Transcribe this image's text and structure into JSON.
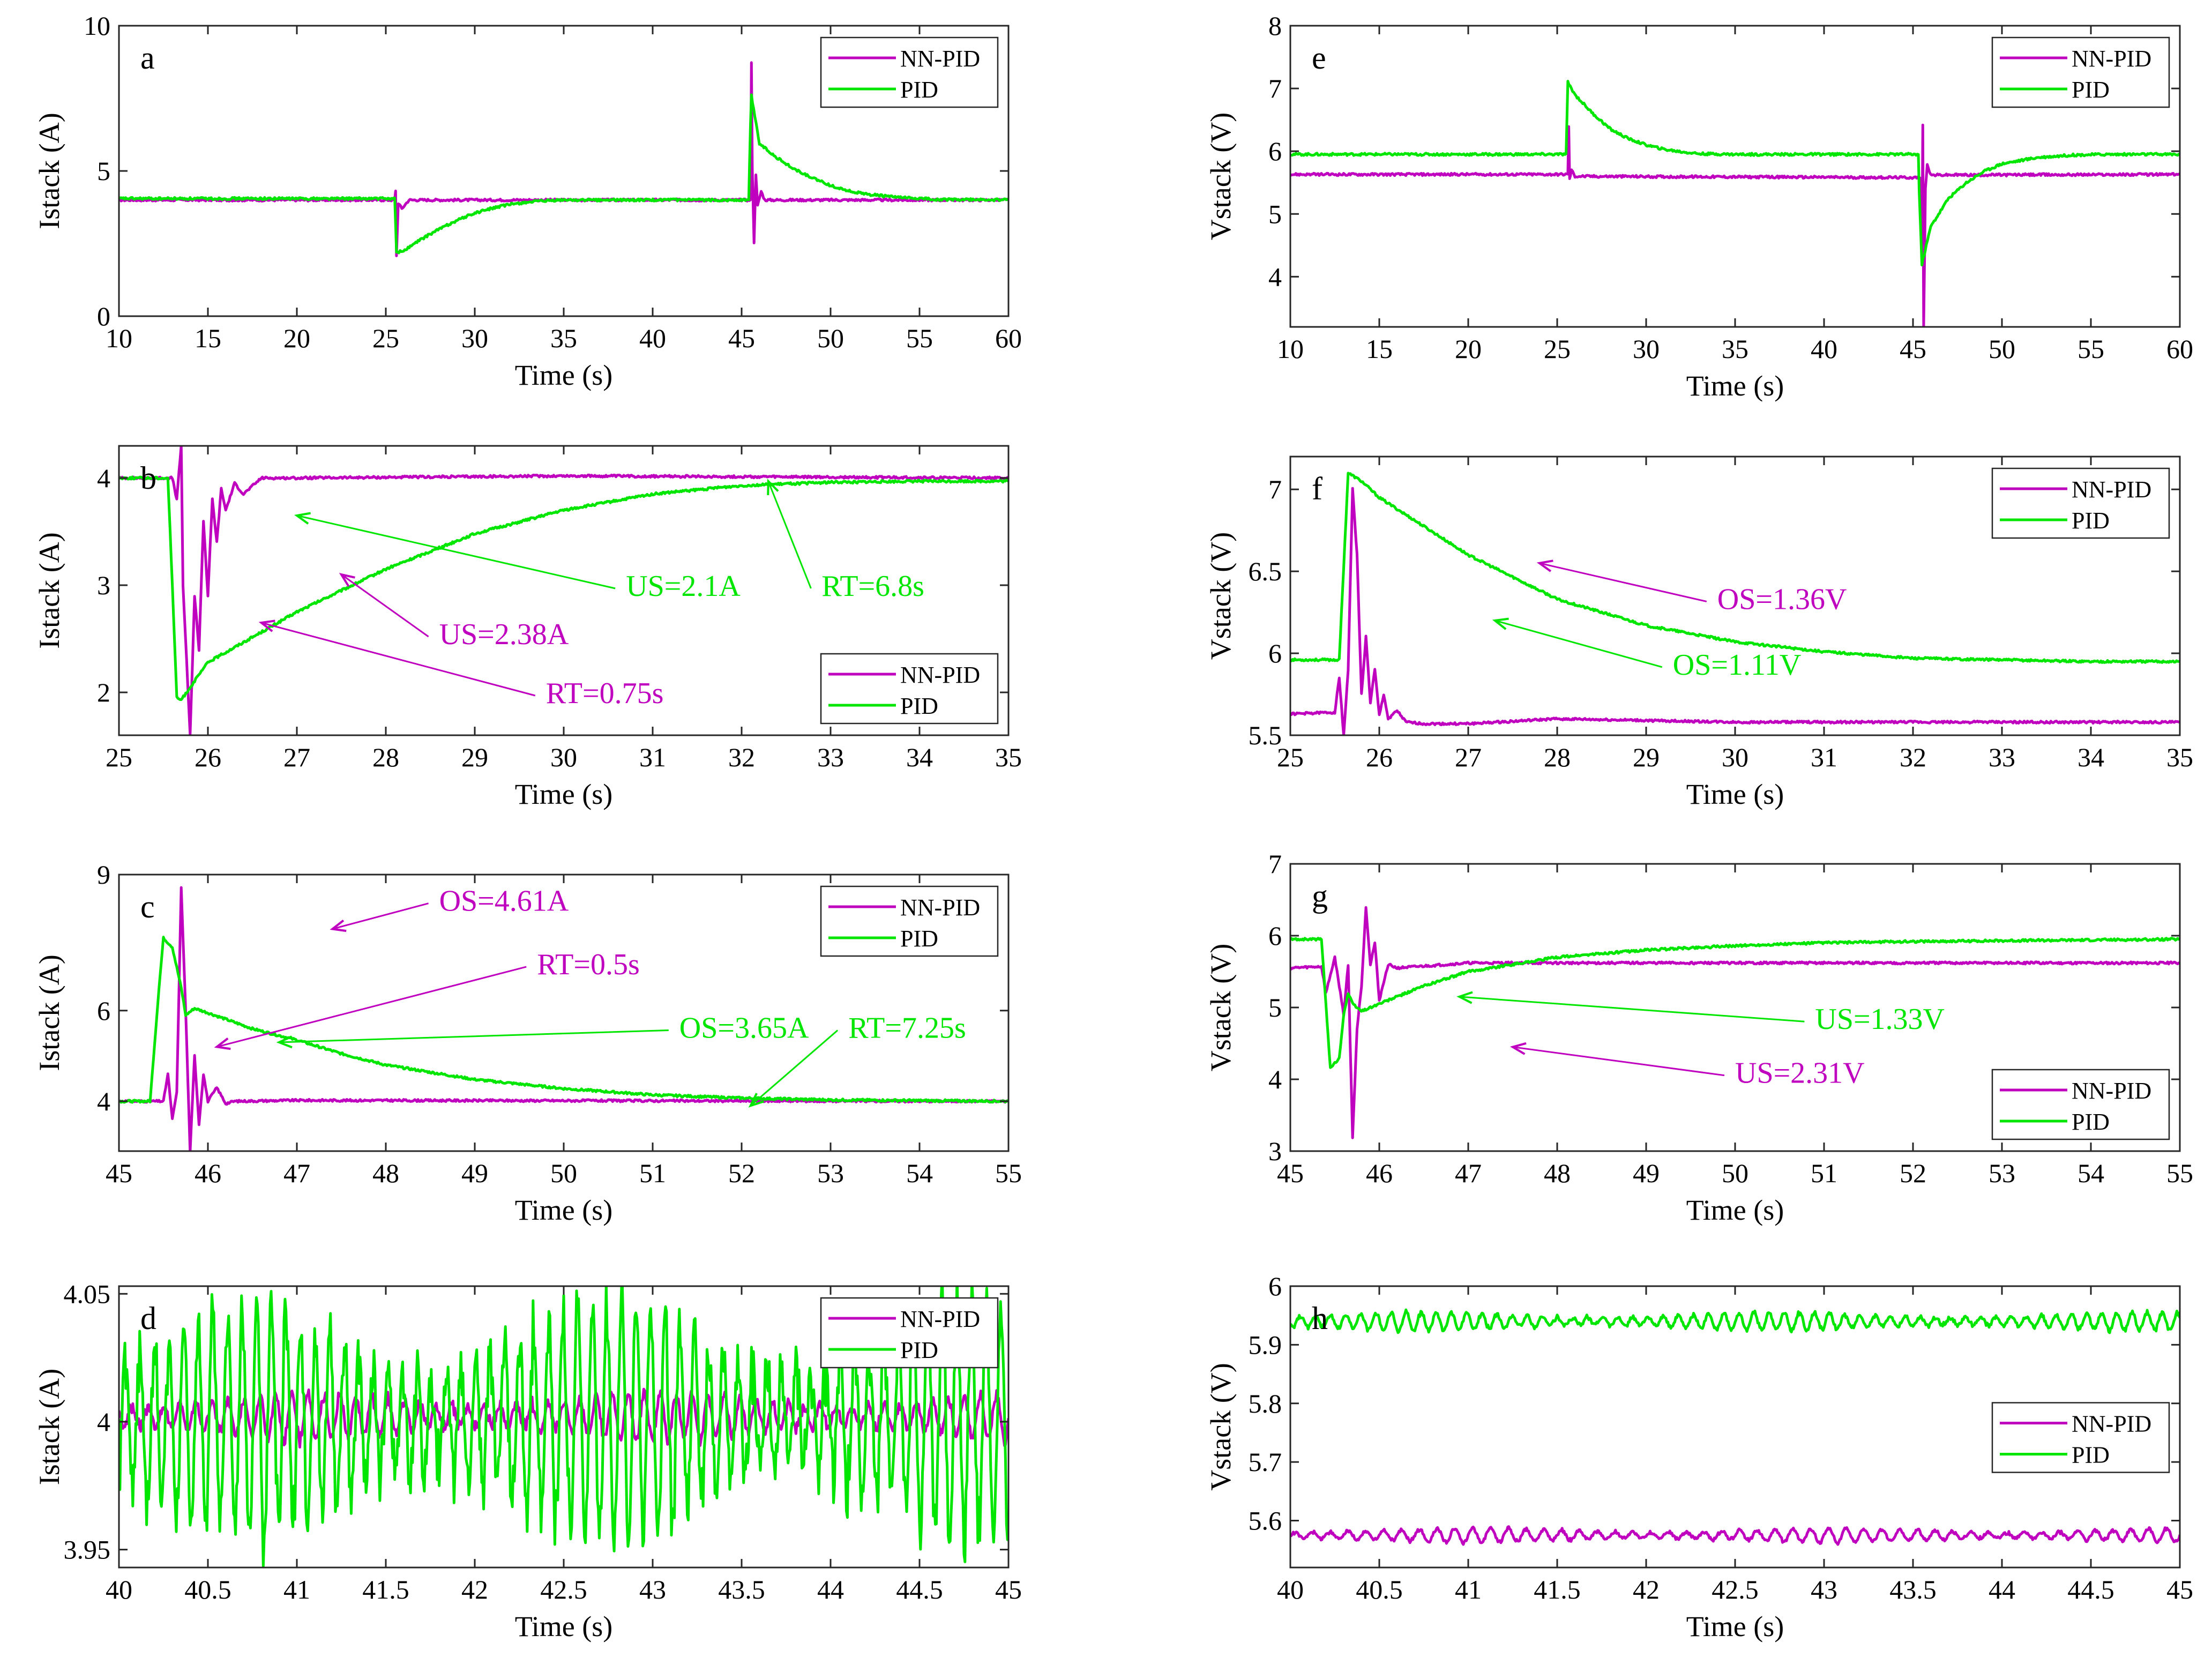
{
  "colors": {
    "nnpid": "#BF00BF",
    "pid": "#00E600",
    "axis": "#262626",
    "grid": "#000000"
  },
  "chart_data": [
    {
      "id": "a",
      "panel_label": "a",
      "type": "line",
      "xlabel": "Time (s)",
      "ylabel": "Istack (A)",
      "xlim": [
        10,
        60
      ],
      "ylim": [
        0,
        10
      ],
      "xticks": [
        10,
        15,
        20,
        25,
        30,
        35,
        40,
        45,
        50,
        55,
        60
      ],
      "yticks": [
        0,
        5,
        10
      ],
      "xtick_labels": [
        "10",
        "15",
        "20",
        "25",
        "30",
        "35",
        "40",
        "45",
        "50",
        "55",
        "60"
      ],
      "ytick_labels": [
        "0",
        "5",
        "10"
      ],
      "legend": {
        "position": "top-right",
        "entries": [
          "NN-PID",
          "PID"
        ]
      },
      "series": [
        {
          "name": "NN-PID",
          "x": [
            10,
            12,
            25.5,
            25.55,
            25.6,
            25.7,
            25.9,
            26.3,
            30,
            45.5,
            45.55,
            45.6,
            45.7,
            45.8,
            45.9,
            46.1,
            46.3,
            60
          ],
          "y": [
            4.0,
            4.0,
            4.0,
            4.3,
            2.1,
            3.9,
            3.7,
            4.0,
            4.0,
            4.0,
            8.7,
            5.1,
            2.5,
            4.9,
            3.8,
            4.3,
            4.0,
            4.0
          ]
        },
        {
          "name": "PID",
          "x": [
            10,
            25.5,
            25.6,
            26,
            27,
            28,
            29,
            30,
            31,
            32,
            33,
            35,
            45.4,
            45.5,
            45.55,
            46,
            47,
            48,
            49,
            50,
            51,
            52,
            54,
            56,
            60
          ],
          "y": [
            4.05,
            4.05,
            2.2,
            2.25,
            2.65,
            3.0,
            3.3,
            3.55,
            3.72,
            3.85,
            3.93,
            4.0,
            4.0,
            6.6,
            7.6,
            5.95,
            5.45,
            5.05,
            4.75,
            4.5,
            4.32,
            4.2,
            4.08,
            4.02,
            4.0
          ]
        }
      ],
      "annotations": []
    },
    {
      "id": "b",
      "panel_label": "b",
      "type": "line",
      "xlabel": "Time (s)",
      "ylabel": "Istack (A)",
      "xlim": [
        25,
        35
      ],
      "ylim": [
        1.6,
        4.3
      ],
      "xticks": [
        25,
        26,
        27,
        28,
        29,
        30,
        31,
        32,
        33,
        34,
        35
      ],
      "yticks": [
        2,
        3,
        4
      ],
      "xtick_labels": [
        "25",
        "26",
        "27",
        "28",
        "29",
        "30",
        "31",
        "32",
        "33",
        "34",
        "35"
      ],
      "ytick_labels": [
        "2",
        "3",
        "4"
      ],
      "legend": {
        "position": "bottom-right",
        "entries": [
          "NN-PID",
          "PID"
        ]
      },
      "series": [
        {
          "name": "NN-PID",
          "x": [
            25,
            25.6,
            25.65,
            25.7,
            25.72,
            25.8,
            25.85,
            25.9,
            25.95,
            26.0,
            26.05,
            26.1,
            26.15,
            26.2,
            26.3,
            26.4,
            26.6,
            27,
            30,
            35
          ],
          "y": [
            4.0,
            4.0,
            3.8,
            4.3,
            3.0,
            1.6,
            2.9,
            2.4,
            3.6,
            2.9,
            3.8,
            3.4,
            3.9,
            3.7,
            3.95,
            3.85,
            4.0,
            4.0,
            4.02,
            4.0
          ]
        },
        {
          "name": "PID",
          "x": [
            25,
            25.55,
            25.6,
            25.65,
            25.7,
            26,
            27,
            28,
            29,
            30,
            31,
            32,
            33,
            34,
            35
          ],
          "y": [
            4.0,
            4.0,
            3.0,
            1.95,
            1.93,
            2.28,
            2.75,
            3.15,
            3.48,
            3.7,
            3.85,
            3.93,
            3.96,
            3.97,
            3.97
          ]
        }
      ],
      "annotations": [
        {
          "text": "US=2.1A",
          "series": "PID",
          "tx": 30.7,
          "ty": 2.9,
          "ax": 27,
          "ay": 3.65
        },
        {
          "text": "RT=6.8s",
          "series": "PID",
          "tx": 32.9,
          "ty": 2.9,
          "ax": 32.3,
          "ay": 3.97
        },
        {
          "text": "US=2.38A",
          "series": "NN-PID",
          "tx": 28.6,
          "ty": 2.45,
          "ax": 27.5,
          "ay": 3.1
        },
        {
          "text": "RT=0.75s",
          "series": "NN-PID",
          "tx": 29.8,
          "ty": 1.9,
          "ax": 26.6,
          "ay": 2.65
        }
      ]
    },
    {
      "id": "c",
      "panel_label": "c",
      "type": "line",
      "xlabel": "Time (s)",
      "ylabel": "Istack (A)",
      "xlim": [
        45,
        55
      ],
      "ylim": [
        2.9,
        9
      ],
      "xticks": [
        45,
        46,
        47,
        48,
        49,
        50,
        51,
        52,
        53,
        54,
        55
      ],
      "yticks": [
        4,
        6,
        9
      ],
      "xtick_labels": [
        "45",
        "46",
        "47",
        "48",
        "49",
        "50",
        "51",
        "52",
        "53",
        "54",
        "55"
      ],
      "ytick_labels": [
        "4",
        "6",
        "9"
      ],
      "legend": {
        "position": "top-right",
        "entries": [
          "NN-PID",
          "PID"
        ]
      },
      "series": [
        {
          "name": "NN-PID",
          "x": [
            45,
            45.5,
            45.55,
            45.6,
            45.65,
            45.7,
            45.75,
            45.8,
            45.85,
            45.9,
            45.95,
            46,
            46.1,
            46.2,
            46.3,
            47,
            55
          ],
          "y": [
            4.0,
            4.0,
            4.6,
            3.6,
            4.2,
            8.7,
            6.0,
            2.9,
            5.0,
            3.5,
            4.6,
            4.0,
            4.3,
            3.95,
            4.0,
            4.02,
            4.0
          ]
        },
        {
          "name": "PID",
          "x": [
            45,
            45.35,
            45.45,
            45.5,
            45.6,
            45.7,
            45.75,
            45.85,
            46,
            46.5,
            47,
            47.5,
            48,
            49,
            50,
            51,
            52,
            53,
            55
          ],
          "y": [
            4.0,
            4.0,
            6.5,
            7.6,
            7.4,
            6.5,
            5.9,
            6.05,
            5.95,
            5.6,
            5.35,
            5.05,
            4.8,
            4.48,
            4.28,
            4.14,
            4.07,
            4.03,
            4.0
          ]
        }
      ],
      "annotations": [
        {
          "text": "OS=4.61A",
          "series": "NN-PID",
          "tx": 48.6,
          "ty": 8.2,
          "ax": 47.4,
          "ay": 7.8
        },
        {
          "text": "RT=0.5s",
          "series": "NN-PID",
          "tx": 49.7,
          "ty": 6.8,
          "ax": 46.1,
          "ay": 5.2
        },
        {
          "text": "OS=3.65A",
          "series": "PID",
          "tx": 51.3,
          "ty": 5.4,
          "ax": 46.8,
          "ay": 5.3
        },
        {
          "text": "RT=7.25s",
          "series": "PID",
          "tx": 53.2,
          "ty": 5.4,
          "ax": 52.1,
          "ay": 3.9
        }
      ]
    },
    {
      "id": "d",
      "panel_label": "d",
      "type": "line",
      "xlabel": "Time (s)",
      "ylabel": "Istack (A)",
      "xlim": [
        40,
        45
      ],
      "ylim": [
        3.943,
        4.053
      ],
      "xticks": [
        40,
        40.5,
        41,
        41.5,
        42,
        42.5,
        43,
        43.5,
        44,
        44.5,
        45
      ],
      "yticks": [
        3.95,
        4,
        4.05
      ],
      "xtick_labels": [
        "40",
        "40.5",
        "41",
        "41.5",
        "42",
        "42.5",
        "43",
        "43.5",
        "44",
        "44.5",
        "45"
      ],
      "ytick_labels": [
        "3.95",
        "4",
        "4.05"
      ],
      "legend": {
        "position": "top-right",
        "entries": [
          "NN-PID",
          "PID"
        ]
      },
      "series": [
        {
          "name": "NN-PID",
          "center": 4.002,
          "amplitude": 0.009,
          "wave_period": 0.09
        },
        {
          "name": "PID",
          "center": 4.0,
          "amplitude": 0.045,
          "wave_period": 0.082
        }
      ],
      "annotations": []
    },
    {
      "id": "e",
      "panel_label": "e",
      "type": "line",
      "xlabel": "Time (s)",
      "ylabel": "Vstack (V)",
      "xlim": [
        10,
        60
      ],
      "ylim": [
        3.2,
        8
      ],
      "xticks": [
        10,
        15,
        20,
        25,
        30,
        35,
        40,
        45,
        50,
        55,
        60
      ],
      "yticks": [
        4,
        5,
        6,
        7,
        8
      ],
      "xtick_labels": [
        "10",
        "15",
        "20",
        "25",
        "30",
        "35",
        "40",
        "45",
        "50",
        "55",
        "60"
      ],
      "ytick_labels": [
        "4",
        "5",
        "6",
        "7",
        "8"
      ],
      "legend": {
        "position": "top-right",
        "entries": [
          "NN-PID",
          "PID"
        ]
      },
      "series": [
        {
          "name": "NN-PID",
          "x": [
            10,
            25.6,
            25.65,
            25.7,
            25.8,
            26,
            45.4,
            45.45,
            45.5,
            45.55,
            45.6,
            45.7,
            45.8,
            46,
            60
          ],
          "y": [
            5.63,
            5.63,
            6.4,
            5.55,
            5.7,
            5.6,
            5.58,
            5.5,
            4.3,
            6.4,
            3.2,
            5.4,
            5.8,
            5.62,
            5.63
          ]
        },
        {
          "name": "PID",
          "x": [
            10,
            25.5,
            25.6,
            26,
            27,
            28,
            29,
            30,
            31,
            32,
            33,
            35,
            45.3,
            45.35,
            45.5,
            46,
            47,
            48,
            49,
            50,
            52,
            54,
            56,
            60
          ],
          "y": [
            5.95,
            5.95,
            7.1,
            6.9,
            6.6,
            6.35,
            6.2,
            6.1,
            6.03,
            5.99,
            5.96,
            5.95,
            5.95,
            5.35,
            4.2,
            4.8,
            5.25,
            5.5,
            5.68,
            5.8,
            5.9,
            5.94,
            5.95,
            5.95
          ]
        }
      ],
      "annotations": []
    },
    {
      "id": "f",
      "panel_label": "f",
      "type": "line",
      "xlabel": "Time (s)",
      "ylabel": "Vstack (V)",
      "xlim": [
        25,
        35
      ],
      "ylim": [
        5.5,
        7.2
      ],
      "xticks": [
        25,
        26,
        27,
        28,
        29,
        30,
        31,
        32,
        33,
        34,
        35
      ],
      "yticks": [
        5.5,
        6,
        6.5,
        7
      ],
      "xtick_labels": [
        "25",
        "26",
        "27",
        "28",
        "29",
        "30",
        "31",
        "32",
        "33",
        "34",
        "35"
      ],
      "ytick_labels": [
        "5.5",
        "6",
        "6.5",
        "7"
      ],
      "legend": {
        "position": "top-right",
        "entries": [
          "NN-PID",
          "PID"
        ]
      },
      "series": [
        {
          "name": "NN-PID",
          "x": [
            25,
            25.5,
            25.55,
            25.6,
            25.65,
            25.7,
            25.75,
            25.8,
            25.85,
            25.9,
            25.95,
            26,
            26.05,
            26.1,
            26.2,
            26.3,
            26.5,
            27,
            28,
            30,
            35
          ],
          "y": [
            5.63,
            5.64,
            5.85,
            5.5,
            5.9,
            7.0,
            6.6,
            5.75,
            6.1,
            5.7,
            5.9,
            5.62,
            5.75,
            5.6,
            5.65,
            5.58,
            5.57,
            5.57,
            5.6,
            5.58,
            5.58
          ]
        },
        {
          "name": "PID",
          "x": [
            25,
            25.55,
            25.65,
            25.8,
            26,
            27,
            28,
            29,
            30,
            31,
            32,
            33,
            34,
            35
          ],
          "y": [
            5.96,
            5.96,
            7.1,
            7.05,
            6.95,
            6.6,
            6.33,
            6.17,
            6.07,
            6.01,
            5.97,
            5.96,
            5.95,
            5.95
          ]
        }
      ],
      "annotations": [
        {
          "text": "OS=1.36V",
          "series": "NN-PID",
          "tx": 29.8,
          "ty": 6.27,
          "ax": 27.8,
          "ay": 6.55
        },
        {
          "text": "OS=1.11V",
          "series": "PID",
          "tx": 29.3,
          "ty": 5.87,
          "ax": 27.3,
          "ay": 6.2
        }
      ]
    },
    {
      "id": "g",
      "panel_label": "g",
      "type": "line",
      "xlabel": "Time (s)",
      "ylabel": "Vstack (V)",
      "xlim": [
        45,
        55
      ],
      "ylim": [
        3,
        7
      ],
      "xticks": [
        45,
        46,
        47,
        48,
        49,
        50,
        51,
        52,
        53,
        54,
        55
      ],
      "yticks": [
        3,
        4,
        5,
        6,
        7
      ],
      "xtick_labels": [
        "45",
        "46",
        "47",
        "48",
        "49",
        "50",
        "51",
        "52",
        "53",
        "54",
        "55"
      ],
      "ytick_labels": [
        "3",
        "4",
        "5",
        "6",
        "7"
      ],
      "legend": {
        "position": "bottom-right",
        "entries": [
          "NN-PID",
          "PID"
        ]
      },
      "series": [
        {
          "name": "NN-PID",
          "x": [
            45,
            45.35,
            45.4,
            45.5,
            45.6,
            45.65,
            45.7,
            45.75,
            45.8,
            45.85,
            45.9,
            45.95,
            46,
            46.1,
            46.2,
            47,
            55
          ],
          "y": [
            5.55,
            5.57,
            5.2,
            5.7,
            4.9,
            5.6,
            3.2,
            4.7,
            5.3,
            6.4,
            5.6,
            5.9,
            5.1,
            5.6,
            5.55,
            5.62,
            5.62
          ]
        },
        {
          "name": "PID",
          "x": [
            45,
            45.35,
            45.45,
            45.55,
            45.6,
            45.65,
            45.7,
            45.8,
            46,
            46.5,
            47,
            48,
            49,
            50,
            51,
            52,
            53,
            54,
            55
          ],
          "y": [
            5.95,
            5.95,
            4.15,
            4.3,
            4.9,
            5.2,
            5.05,
            4.95,
            5.05,
            5.3,
            5.5,
            5.7,
            5.8,
            5.86,
            5.9,
            5.92,
            5.93,
            5.94,
            5.95
          ]
        }
      ],
      "annotations": [
        {
          "text": "US=1.33V",
          "series": "PID",
          "tx": 50.9,
          "ty": 4.7,
          "ax": 46.9,
          "ay": 5.15
        },
        {
          "text": "US=2.31V",
          "series": "NN-PID",
          "tx": 50.0,
          "ty": 3.95,
          "ax": 47.5,
          "ay": 4.45
        }
      ]
    },
    {
      "id": "h",
      "panel_label": "h",
      "type": "line",
      "xlabel": "Time (s)",
      "ylabel": "Vstack (V)",
      "xlim": [
        40,
        45
      ],
      "ylim": [
        5.52,
        6.0
      ],
      "xticks": [
        40,
        40.5,
        41,
        41.5,
        42,
        42.5,
        43,
        43.5,
        44,
        44.5,
        45
      ],
      "yticks": [
        5.6,
        5.7,
        5.8,
        5.9,
        6
      ],
      "xtick_labels": [
        "40",
        "40.5",
        "41",
        "41.5",
        "42",
        "42.5",
        "43",
        "43.5",
        "44",
        "44.5",
        "45"
      ],
      "ytick_labels": [
        "5.6",
        "5.7",
        "5.8",
        "5.9",
        "6"
      ],
      "legend": {
        "position": "center-right",
        "entries": [
          "NN-PID",
          "PID"
        ]
      },
      "series": [
        {
          "name": "NN-PID",
          "center": 5.575,
          "amplitude": 0.012,
          "wave_period": 0.1
        },
        {
          "name": "PID",
          "center": 5.94,
          "amplitude": 0.015,
          "wave_period": 0.085
        }
      ],
      "annotations": []
    }
  ]
}
